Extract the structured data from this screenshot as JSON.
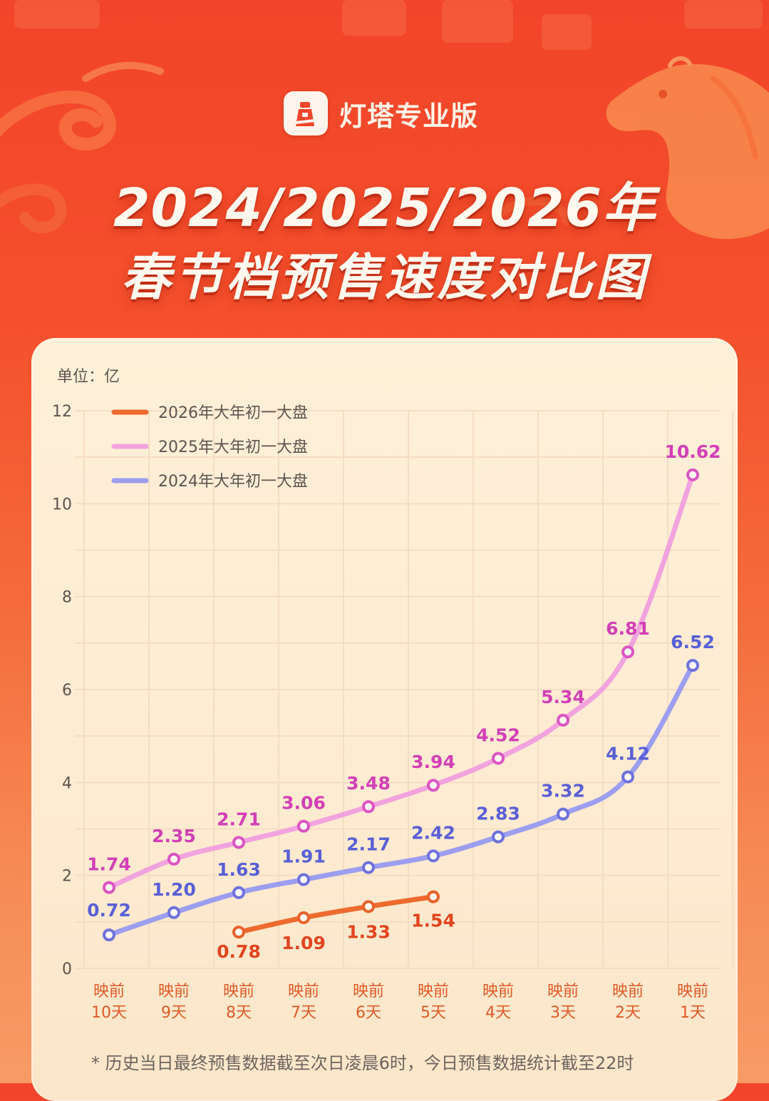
{
  "brand": {
    "name": "灯塔专业版"
  },
  "title": {
    "line1": "2024/2025/2026年",
    "line2": "春节档预售速度对比图"
  },
  "footnote": "* 历史当日最终预售数据截至次日凌晨6时，今日预售数据统计截至22时",
  "colors": {
    "s2026": "#ef6a2e",
    "s2025": "#f2a3df",
    "s2024": "#9c9ef0"
  },
  "chart_data": {
    "type": "line",
    "unit_label": "单位：亿",
    "categories": [
      [
        "映前",
        "10天"
      ],
      [
        "映前",
        "9天"
      ],
      [
        "映前",
        "8天"
      ],
      [
        "映前",
        "7天"
      ],
      [
        "映前",
        "6天"
      ],
      [
        "映前",
        "5天"
      ],
      [
        "映前",
        "4天"
      ],
      [
        "映前",
        "3天"
      ],
      [
        "映前",
        "2天"
      ],
      [
        "映前",
        "1天"
      ]
    ],
    "ylim": [
      0,
      12
    ],
    "yticks": [
      "0",
      "2",
      "4",
      "6",
      "8",
      "10",
      "12"
    ],
    "grid": true,
    "legend_position": "top-left",
    "series": [
      {
        "name": "2026年大年初一大盘",
        "key": "s2026",
        "values": [
          null,
          null,
          0.78,
          1.09,
          1.33,
          1.54,
          null,
          null,
          null,
          null
        ],
        "labels": [
          null,
          null,
          "0.78",
          "1.09",
          "1.33",
          "1.54",
          null,
          null,
          null,
          null
        ]
      },
      {
        "name": "2025年大年初一大盘",
        "key": "s2025",
        "values": [
          1.74,
          2.35,
          2.71,
          3.06,
          3.48,
          3.94,
          4.52,
          5.34,
          6.81,
          10.62
        ],
        "labels": [
          "1.74",
          "2.35",
          "2.71",
          "3.06",
          "3.48",
          "3.94",
          "4.52",
          "5.34",
          "6.81",
          "10.62"
        ]
      },
      {
        "name": "2024年大年初一大盘",
        "key": "s2024",
        "values": [
          0.72,
          1.2,
          1.63,
          1.91,
          2.17,
          2.42,
          2.83,
          3.32,
          4.12,
          6.52
        ],
        "labels": [
          "0.72",
          "1.20",
          "1.63",
          "1.91",
          "2.17",
          "2.42",
          "2.83",
          "3.32",
          "4.12",
          "6.52"
        ]
      }
    ]
  }
}
